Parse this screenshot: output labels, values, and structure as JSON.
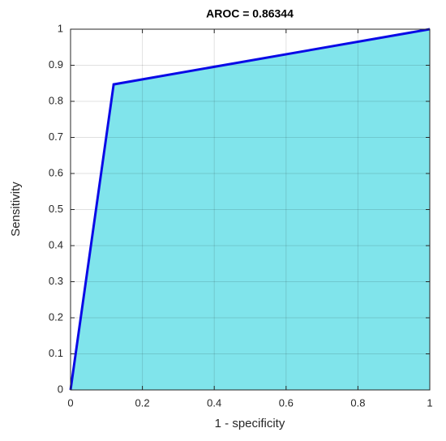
{
  "chart_data": {
    "type": "area",
    "title": "AROC = 0.86344",
    "xlabel": "1 - specificity",
    "ylabel": "Sensitivity",
    "x": [
      0,
      0.12,
      1
    ],
    "series": [
      {
        "values": [
          0,
          0.847,
          1
        ],
        "color": "#0a0ae6",
        "fill": "#80e4eb"
      }
    ],
    "xlim": [
      0,
      1
    ],
    "ylim": [
      0,
      1
    ],
    "xticks": [
      0,
      0.2,
      0.4,
      0.6,
      0.8,
      1
    ],
    "yticks": [
      0,
      0.1,
      0.2,
      0.3,
      0.4,
      0.5,
      0.6,
      0.7,
      0.8,
      0.9,
      1
    ],
    "grid": true
  }
}
